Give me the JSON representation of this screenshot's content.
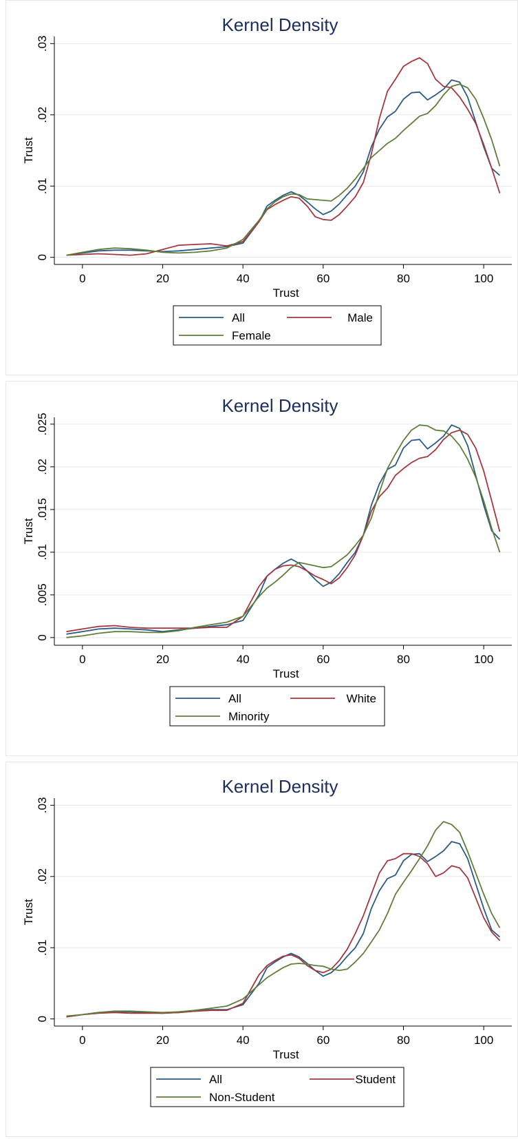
{
  "colors": {
    "all": "#2a5a85",
    "group1": "#a3383f",
    "group2": "#5e7e3a",
    "grid": "#e8e8e8",
    "title": "#1c2f5c"
  },
  "chart_data": [
    {
      "type": "line",
      "title": "Kernel Density",
      "xlabel": "Trust",
      "ylabel": "Trust",
      "xlim": [
        -7,
        107
      ],
      "ylim": [
        -0.001,
        0.031
      ],
      "xticks": [
        0,
        20,
        40,
        60,
        80,
        100
      ],
      "xtick_labels": [
        "0",
        "20",
        "40",
        "60",
        "80",
        "100"
      ],
      "yticks": [
        0,
        0.01,
        0.02,
        0.03
      ],
      "ytick_labels": [
        "0",
        ".01",
        ".02",
        ".03"
      ],
      "grid": true,
      "legend_position": "bottom",
      "series": [
        {
          "name": "All",
          "color_key": "all",
          "x": [
            -4,
            0,
            4,
            8,
            12,
            16,
            20,
            24,
            28,
            32,
            36,
            40,
            44,
            46,
            48,
            50,
            52,
            54,
            56,
            58,
            60,
            62,
            64,
            66,
            68,
            70,
            72,
            74,
            76,
            78,
            80,
            82,
            84,
            86,
            88,
            90,
            92,
            94,
            96,
            98,
            100,
            102,
            104
          ],
          "y": [
            0.0003,
            0.0006,
            0.0009,
            0.001,
            0.001,
            0.0009,
            0.0008,
            0.0009,
            0.0011,
            0.0013,
            0.0015,
            0.002,
            0.005,
            0.0072,
            0.008,
            0.0087,
            0.0092,
            0.0087,
            0.0078,
            0.0068,
            0.006,
            0.0065,
            0.0075,
            0.0088,
            0.01,
            0.012,
            0.0155,
            0.018,
            0.0197,
            0.0205,
            0.0222,
            0.0231,
            0.0232,
            0.0221,
            0.0228,
            0.0236,
            0.0249,
            0.0246,
            0.0225,
            0.019,
            0.0155,
            0.0125,
            0.0115
          ]
        },
        {
          "name": "Male",
          "color_key": "group1",
          "x": [
            -4,
            0,
            4,
            8,
            12,
            16,
            20,
            24,
            28,
            32,
            36,
            40,
            44,
            46,
            48,
            50,
            52,
            54,
            56,
            58,
            60,
            62,
            64,
            66,
            68,
            70,
            72,
            74,
            76,
            78,
            80,
            82,
            84,
            86,
            88,
            90,
            92,
            94,
            96,
            98,
            100,
            102,
            104
          ],
          "y": [
            0.0003,
            0.0004,
            0.0005,
            0.0004,
            0.0003,
            0.0005,
            0.0011,
            0.0017,
            0.0018,
            0.0019,
            0.0016,
            0.0022,
            0.005,
            0.0067,
            0.0074,
            0.008,
            0.0085,
            0.0083,
            0.0072,
            0.0057,
            0.0053,
            0.0052,
            0.006,
            0.0072,
            0.0085,
            0.0105,
            0.0145,
            0.0195,
            0.0233,
            0.025,
            0.0268,
            0.0275,
            0.028,
            0.0272,
            0.025,
            0.024,
            0.0238,
            0.0225,
            0.0208,
            0.0188,
            0.0158,
            0.0125,
            0.009
          ]
        },
        {
          "name": "Female",
          "color_key": "group2",
          "x": [
            -4,
            0,
            4,
            8,
            12,
            16,
            20,
            24,
            28,
            32,
            36,
            40,
            44,
            46,
            48,
            50,
            52,
            54,
            56,
            58,
            60,
            62,
            64,
            66,
            68,
            70,
            72,
            74,
            76,
            78,
            80,
            82,
            84,
            86,
            88,
            90,
            92,
            94,
            96,
            98,
            100,
            102,
            104
          ],
          "y": [
            0.0003,
            0.0007,
            0.0011,
            0.0013,
            0.0012,
            0.001,
            0.0007,
            0.0006,
            0.0007,
            0.0009,
            0.0013,
            0.0025,
            0.0052,
            0.0068,
            0.0078,
            0.0085,
            0.0089,
            0.0088,
            0.0082,
            0.0081,
            0.008,
            0.0079,
            0.0087,
            0.0097,
            0.011,
            0.0125,
            0.014,
            0.015,
            0.016,
            0.0167,
            0.0178,
            0.0188,
            0.0198,
            0.0202,
            0.0213,
            0.0228,
            0.024,
            0.0243,
            0.0238,
            0.0222,
            0.0195,
            0.0165,
            0.0128
          ]
        }
      ]
    },
    {
      "type": "line",
      "title": "Kernel Density",
      "xlabel": "Trust",
      "ylabel": "Trust",
      "xlim": [
        -7,
        107
      ],
      "ylim": [
        -0.0009,
        0.0258
      ],
      "xticks": [
        0,
        20,
        40,
        60,
        80,
        100
      ],
      "xtick_labels": [
        "0",
        "20",
        "40",
        "60",
        "80",
        "100"
      ],
      "yticks": [
        0,
        0.005,
        0.01,
        0.015,
        0.02,
        0.025
      ],
      "ytick_labels": [
        "0",
        ".005",
        ".01",
        ".015",
        ".02",
        ".025"
      ],
      "grid": true,
      "legend_position": "bottom",
      "series": [
        {
          "name": "All",
          "color_key": "all",
          "x": [
            -4,
            0,
            4,
            8,
            12,
            16,
            20,
            24,
            28,
            32,
            36,
            40,
            44,
            46,
            48,
            50,
            52,
            54,
            56,
            58,
            60,
            62,
            64,
            66,
            68,
            70,
            72,
            74,
            76,
            78,
            80,
            82,
            84,
            86,
            88,
            90,
            92,
            94,
            96,
            98,
            100,
            102,
            104
          ],
          "y": [
            0.0004,
            0.0007,
            0.001,
            0.0011,
            0.001,
            0.0009,
            0.0007,
            0.0009,
            0.0011,
            0.0013,
            0.0015,
            0.002,
            0.005,
            0.0072,
            0.008,
            0.0087,
            0.0092,
            0.0087,
            0.0078,
            0.0068,
            0.006,
            0.0065,
            0.0075,
            0.0088,
            0.01,
            0.012,
            0.0155,
            0.018,
            0.0197,
            0.0202,
            0.0222,
            0.0231,
            0.0232,
            0.0221,
            0.0228,
            0.0236,
            0.0249,
            0.0245,
            0.0225,
            0.019,
            0.0155,
            0.0125,
            0.0115
          ]
        },
        {
          "name": "White",
          "color_key": "group1",
          "x": [
            -4,
            0,
            4,
            8,
            12,
            16,
            20,
            24,
            28,
            32,
            36,
            40,
            44,
            46,
            48,
            50,
            52,
            54,
            56,
            58,
            60,
            62,
            64,
            66,
            68,
            70,
            72,
            74,
            76,
            78,
            80,
            82,
            84,
            86,
            88,
            90,
            92,
            94,
            96,
            98,
            100,
            102,
            104
          ],
          "y": [
            0.0007,
            0.001,
            0.0013,
            0.0014,
            0.0012,
            0.0011,
            0.0011,
            0.0011,
            0.0011,
            0.0012,
            0.0012,
            0.0025,
            0.006,
            0.0072,
            0.008,
            0.0084,
            0.0085,
            0.0083,
            0.0078,
            0.0072,
            0.0068,
            0.0063,
            0.007,
            0.0082,
            0.0097,
            0.012,
            0.0148,
            0.0165,
            0.0175,
            0.019,
            0.0198,
            0.0205,
            0.021,
            0.0212,
            0.022,
            0.0232,
            0.024,
            0.0243,
            0.0238,
            0.0222,
            0.0195,
            0.016,
            0.0124
          ]
        },
        {
          "name": "Minority",
          "color_key": "group2",
          "x": [
            -4,
            0,
            4,
            8,
            12,
            16,
            20,
            24,
            28,
            32,
            36,
            40,
            44,
            46,
            48,
            50,
            52,
            54,
            56,
            58,
            60,
            62,
            64,
            66,
            68,
            70,
            72,
            74,
            76,
            78,
            80,
            82,
            84,
            86,
            88,
            90,
            92,
            94,
            96,
            98,
            100,
            102,
            104
          ],
          "y": [
            0.0,
            0.0002,
            0.0005,
            0.0007,
            0.0007,
            0.0006,
            0.0006,
            0.0008,
            0.0012,
            0.0015,
            0.0018,
            0.0025,
            0.0048,
            0.0058,
            0.0065,
            0.0073,
            0.0082,
            0.0088,
            0.0086,
            0.0084,
            0.0082,
            0.0083,
            0.009,
            0.0097,
            0.0108,
            0.012,
            0.014,
            0.017,
            0.0198,
            0.0215,
            0.0231,
            0.0243,
            0.0249,
            0.0248,
            0.0243,
            0.0242,
            0.0236,
            0.0225,
            0.0209,
            0.0188,
            0.016,
            0.0128,
            0.01
          ]
        }
      ]
    },
    {
      "type": "line",
      "title": "Kernel Density",
      "xlabel": "Trust",
      "ylabel": "Trust",
      "xlim": [
        -7,
        107
      ],
      "ylim": [
        -0.001,
        0.031
      ],
      "xticks": [
        0,
        20,
        40,
        60,
        80,
        100
      ],
      "xtick_labels": [
        "0",
        "20",
        "40",
        "60",
        "80",
        "100"
      ],
      "yticks": [
        0,
        0.01,
        0.02,
        0.03
      ],
      "ytick_labels": [
        "0",
        ".01",
        ".02",
        ".03"
      ],
      "grid": true,
      "legend_position": "bottom",
      "series": [
        {
          "name": "All",
          "color_key": "all",
          "x": [
            -4,
            0,
            4,
            8,
            12,
            16,
            20,
            24,
            28,
            32,
            36,
            40,
            44,
            46,
            48,
            50,
            52,
            54,
            56,
            58,
            60,
            62,
            64,
            66,
            68,
            70,
            72,
            74,
            76,
            78,
            80,
            82,
            84,
            86,
            88,
            90,
            92,
            94,
            96,
            98,
            100,
            102,
            104
          ],
          "y": [
            0.0003,
            0.0006,
            0.0009,
            0.001,
            0.001,
            0.0009,
            0.0008,
            0.0009,
            0.0011,
            0.0013,
            0.0013,
            0.002,
            0.005,
            0.0072,
            0.008,
            0.0087,
            0.0092,
            0.0087,
            0.0078,
            0.0068,
            0.006,
            0.0065,
            0.0075,
            0.0088,
            0.01,
            0.012,
            0.0155,
            0.018,
            0.0197,
            0.0202,
            0.0222,
            0.0231,
            0.0232,
            0.0221,
            0.0228,
            0.0236,
            0.0249,
            0.0246,
            0.0225,
            0.019,
            0.0155,
            0.0125,
            0.0115
          ]
        },
        {
          "name": "Student",
          "color_key": "group1",
          "x": [
            -4,
            0,
            4,
            8,
            12,
            16,
            20,
            24,
            28,
            32,
            36,
            40,
            44,
            46,
            48,
            50,
            52,
            54,
            56,
            58,
            60,
            62,
            64,
            66,
            68,
            70,
            72,
            74,
            76,
            78,
            80,
            82,
            84,
            86,
            88,
            90,
            92,
            94,
            96,
            98,
            100,
            102,
            104
          ],
          "y": [
            0.0003,
            0.0006,
            0.0008,
            0.0009,
            0.0008,
            0.0008,
            0.0008,
            0.0009,
            0.0011,
            0.0012,
            0.0012,
            0.0022,
            0.0062,
            0.0075,
            0.0082,
            0.0088,
            0.009,
            0.0085,
            0.0075,
            0.0068,
            0.0065,
            0.007,
            0.0082,
            0.0098,
            0.012,
            0.0145,
            0.0175,
            0.0205,
            0.0222,
            0.0225,
            0.0232,
            0.0232,
            0.0228,
            0.0218,
            0.02,
            0.0205,
            0.0215,
            0.0212,
            0.0198,
            0.017,
            0.0142,
            0.0122,
            0.011
          ]
        },
        {
          "name": "Non-Student",
          "color_key": "group2",
          "x": [
            -4,
            0,
            4,
            8,
            12,
            16,
            20,
            24,
            28,
            32,
            36,
            40,
            44,
            46,
            48,
            50,
            52,
            54,
            56,
            58,
            60,
            62,
            64,
            66,
            68,
            70,
            72,
            74,
            76,
            78,
            80,
            82,
            84,
            86,
            88,
            90,
            92,
            94,
            96,
            98,
            100,
            102,
            104
          ],
          "y": [
            0.0004,
            0.0006,
            0.0009,
            0.0011,
            0.0011,
            0.001,
            0.0009,
            0.001,
            0.0012,
            0.0015,
            0.0018,
            0.0028,
            0.0048,
            0.0058,
            0.0065,
            0.0072,
            0.0077,
            0.0078,
            0.0077,
            0.0075,
            0.0074,
            0.007,
            0.0068,
            0.007,
            0.008,
            0.0092,
            0.0108,
            0.0125,
            0.0148,
            0.0175,
            0.0192,
            0.0208,
            0.0225,
            0.0243,
            0.0265,
            0.0277,
            0.0273,
            0.0262,
            0.0235,
            0.0205,
            0.0175,
            0.0148,
            0.0128
          ]
        }
      ]
    }
  ]
}
